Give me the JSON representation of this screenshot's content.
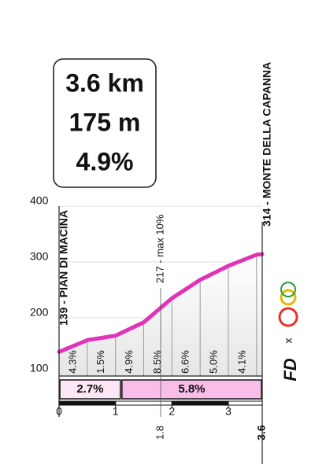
{
  "summary": {
    "distance": "3.6 km",
    "gain": "175 m",
    "gradient": "4.9%"
  },
  "chart_data": {
    "type": "profile",
    "x": [
      0,
      0.5,
      1,
      1.5,
      2,
      2.5,
      3,
      3.5,
      3.6
    ],
    "values": [
      139,
      160,
      168,
      192,
      235,
      268,
      293,
      313,
      314
    ],
    "color": "#e033b8",
    "ylim": [
      100,
      400
    ],
    "yticks": [
      100,
      200,
      300,
      400
    ],
    "xlim": [
      0,
      3.6
    ],
    "xticks": [
      0,
      1,
      2,
      3
    ],
    "grid": true,
    "segment_gradients": {
      "values": [
        4.3,
        1.5,
        4.9,
        8.5,
        6.6,
        5.0,
        4.1
      ],
      "value_labels": [
        "4.3%",
        "1.5%",
        "4.9%",
        "8.5%",
        "6.6%",
        "5.0%",
        "4.1%"
      ]
    },
    "sections": {
      "bins": [
        0,
        1.1,
        3.6
      ],
      "values": [
        2.7,
        5.8
      ],
      "value_labels": [
        "2.7%",
        "5.8%"
      ],
      "colors": [
        "#fde6f5",
        "#f8bde8"
      ]
    },
    "start_label": "139 - PIAN DI MACINA",
    "end_label": "314 - MONTE DELLA CAPANNA",
    "max_marker": {
      "x": 1.8,
      "label": "217 - max 10%"
    }
  },
  "logo": {
    "brand": "FD",
    "separator": "x"
  }
}
